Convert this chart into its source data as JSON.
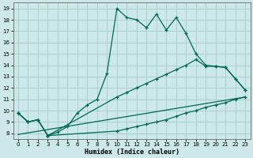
{
  "xlabel": "Humidex (Indice chaleur)",
  "xlim": [
    -0.5,
    23.5
  ],
  "ylim": [
    7.5,
    19.5
  ],
  "xticks": [
    0,
    1,
    2,
    3,
    4,
    5,
    6,
    7,
    8,
    9,
    10,
    11,
    12,
    13,
    14,
    15,
    16,
    17,
    18,
    19,
    20,
    21,
    22,
    23
  ],
  "yticks": [
    8,
    9,
    10,
    11,
    12,
    13,
    14,
    15,
    16,
    17,
    18,
    19
  ],
  "bg_color": "#cce8e8",
  "grid_color": "#aacece",
  "line_color": "#006655",
  "line1_x": [
    0,
    1,
    2,
    3,
    4,
    5,
    6,
    7,
    8,
    9,
    10,
    11,
    12,
    13,
    14,
    15,
    16,
    17,
    18,
    19,
    20,
    21,
    22,
    23
  ],
  "line1_y": [
    9.8,
    9.0,
    9.2,
    7.8,
    8.1,
    8.6,
    9.8,
    10.5,
    11.0,
    13.3,
    19.0,
    18.2,
    18.0,
    17.3,
    18.5,
    17.1,
    18.2,
    16.8,
    15.0,
    14.0,
    13.9,
    13.8,
    12.8,
    11.8
  ],
  "line2_x": [
    0,
    1,
    2,
    3,
    10,
    11,
    12,
    13,
    14,
    15,
    16,
    17,
    18,
    19,
    20,
    21,
    22,
    23
  ],
  "line2_y": [
    9.8,
    9.0,
    9.2,
    7.8,
    11.2,
    11.6,
    12.0,
    12.4,
    12.8,
    13.2,
    13.6,
    14.0,
    14.5,
    13.9,
    13.9,
    13.8,
    12.8,
    11.8
  ],
  "line3_x": [
    0,
    1,
    2,
    3,
    10,
    11,
    12,
    13,
    14,
    15,
    16,
    17,
    18,
    19,
    20,
    21,
    22,
    23
  ],
  "line3_y": [
    9.8,
    9.0,
    9.2,
    7.8,
    8.2,
    8.4,
    8.6,
    8.8,
    9.0,
    9.2,
    9.5,
    9.8,
    10.0,
    10.3,
    10.5,
    10.7,
    11.0,
    11.2
  ],
  "line4_x": [
    0,
    23
  ],
  "line4_y": [
    7.9,
    11.2
  ]
}
